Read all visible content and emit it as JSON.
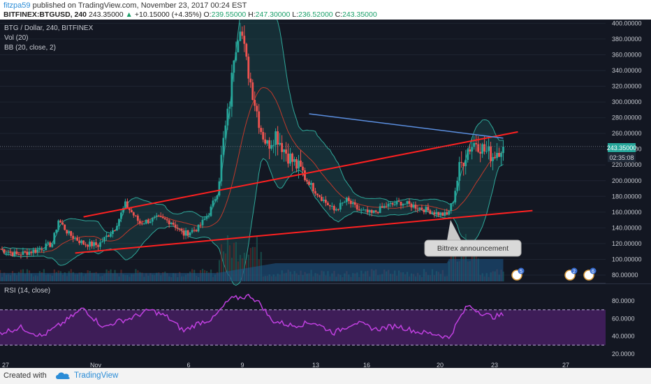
{
  "header": {
    "user": "fitzpa59",
    "published": " published on TradingView.com, November 23, 2017 00:24 EST",
    "symbol": "BITFINEX:BTGUSD, 240",
    "last": "243.35000",
    "change": "+10.15000 (+4.35%)",
    "o_label": "O:",
    "o_value": "239.55000",
    "h_label": "H:",
    "h_value": "247.30000",
    "l_label": "L:",
    "l_value": "236.52000",
    "c_label": "C:",
    "c_value": "243.35000"
  },
  "legend": {
    "title": "BTG / Dollar, 240, BITFINEX",
    "vol": "Vol (20)",
    "bb": "BB (20, close, 2)",
    "rsi": "RSI (14, close)"
  },
  "price_badge": "243.35000",
  "countdown_badge": "02:35:08",
  "annotation": "Bittrex announcement",
  "events": [
    {
      "count": "5",
      "x_date": "2017-11-22"
    },
    {
      "count": "2",
      "x_date": "2017-11-25"
    },
    {
      "count": "6",
      "x_date": "2017-11-26"
    }
  ],
  "footer": {
    "created_with": "Created with",
    "brand": "TradingView"
  },
  "colors": {
    "background": "#131722",
    "up_candle": "#26a69a",
    "down_candle": "#ef5350",
    "trend_red": "#ff2020",
    "trend_blue": "#5b8fe0",
    "rsi_line": "#c040e0",
    "rsi_fill": "#4a1f66"
  },
  "chart_data": {
    "type": "candlestick",
    "x_axis_labels": [
      "27",
      "Nov",
      "6",
      "9",
      "13",
      "16",
      "20",
      "23",
      "27"
    ],
    "y_axis_labels": [
      "80.00000",
      "100.00000",
      "120.00000",
      "140.00000",
      "160.00000",
      "180.00000",
      "200.00000",
      "220.00000",
      "240.00000",
      "260.00000",
      "280.00000",
      "300.00000",
      "320.00000",
      "340.00000",
      "360.00000",
      "380.00000",
      "400.00000"
    ],
    "ylim": [
      72,
      403
    ],
    "rsi_axis_labels": [
      "20.0000",
      "40.0000",
      "60.0000",
      "80.0000"
    ],
    "rsi_ylim": [
      12,
      96
    ],
    "rsi_bands": [
      30,
      70
    ],
    "close_path": [
      {
        "x": 0,
        "y": 113
      },
      {
        "x": 8,
        "y": 106
      },
      {
        "x": 18,
        "y": 112
      },
      {
        "x": 25,
        "y": 120
      },
      {
        "x": 28,
        "y": 150
      },
      {
        "x": 33,
        "y": 132
      },
      {
        "x": 40,
        "y": 120
      },
      {
        "x": 47,
        "y": 118
      },
      {
        "x": 55,
        "y": 140
      },
      {
        "x": 60,
        "y": 170
      },
      {
        "x": 67,
        "y": 146
      },
      {
        "x": 75,
        "y": 152
      },
      {
        "x": 82,
        "y": 148
      },
      {
        "x": 88,
        "y": 132
      },
      {
        "x": 95,
        "y": 140
      },
      {
        "x": 100,
        "y": 158
      },
      {
        "x": 104,
        "y": 185
      },
      {
        "x": 107,
        "y": 250
      },
      {
        "x": 110,
        "y": 300
      },
      {
        "x": 112,
        "y": 360
      },
      {
        "x": 115,
        "y": 400
      },
      {
        "x": 118,
        "y": 350
      },
      {
        "x": 122,
        "y": 300
      },
      {
        "x": 125,
        "y": 265
      },
      {
        "x": 128,
        "y": 245
      },
      {
        "x": 132,
        "y": 260
      },
      {
        "x": 136,
        "y": 240
      },
      {
        "x": 140,
        "y": 225
      },
      {
        "x": 145,
        "y": 210
      },
      {
        "x": 150,
        "y": 190
      },
      {
        "x": 155,
        "y": 175
      },
      {
        "x": 160,
        "y": 162
      },
      {
        "x": 166,
        "y": 175
      },
      {
        "x": 172,
        "y": 162
      },
      {
        "x": 178,
        "y": 158
      },
      {
        "x": 185,
        "y": 168
      },
      {
        "x": 192,
        "y": 172
      },
      {
        "x": 198,
        "y": 168
      },
      {
        "x": 204,
        "y": 163
      },
      {
        "x": 210,
        "y": 158
      },
      {
        "x": 214,
        "y": 156
      },
      {
        "x": 217,
        "y": 175
      },
      {
        "x": 220,
        "y": 215
      },
      {
        "x": 224,
        "y": 240
      },
      {
        "x": 228,
        "y": 250
      },
      {
        "x": 232,
        "y": 238
      },
      {
        "x": 236,
        "y": 232
      },
      {
        "x": 240,
        "y": 243.35
      }
    ],
    "trendlines": [
      {
        "color": "red",
        "from": [
          40,
          154
        ],
        "to": [
          248,
          262
        ]
      },
      {
        "color": "red",
        "from": [
          36,
          108
        ],
        "to": [
          255,
          162
        ]
      },
      {
        "color": "blue",
        "from": [
          148,
          285
        ],
        "to": [
          241,
          254
        ]
      }
    ],
    "rsi_path": [
      {
        "x": 0,
        "y": 44
      },
      {
        "x": 10,
        "y": 50
      },
      {
        "x": 20,
        "y": 40
      },
      {
        "x": 30,
        "y": 55
      },
      {
        "x": 40,
        "y": 72
      },
      {
        "x": 45,
        "y": 60
      },
      {
        "x": 50,
        "y": 50
      },
      {
        "x": 55,
        "y": 56
      },
      {
        "x": 62,
        "y": 60
      },
      {
        "x": 72,
        "y": 70
      },
      {
        "x": 80,
        "y": 62
      },
      {
        "x": 88,
        "y": 46
      },
      {
        "x": 95,
        "y": 55
      },
      {
        "x": 102,
        "y": 60
      },
      {
        "x": 110,
        "y": 82
      },
      {
        "x": 115,
        "y": 84
      },
      {
        "x": 120,
        "y": 86
      },
      {
        "x": 125,
        "y": 76
      },
      {
        "x": 130,
        "y": 58
      },
      {
        "x": 140,
        "y": 52
      },
      {
        "x": 150,
        "y": 56
      },
      {
        "x": 160,
        "y": 44
      },
      {
        "x": 170,
        "y": 56
      },
      {
        "x": 180,
        "y": 48
      },
      {
        "x": 190,
        "y": 52
      },
      {
        "x": 200,
        "y": 45
      },
      {
        "x": 210,
        "y": 42
      },
      {
        "x": 215,
        "y": 38
      },
      {
        "x": 220,
        "y": 60
      },
      {
        "x": 224,
        "y": 75
      },
      {
        "x": 228,
        "y": 70
      },
      {
        "x": 232,
        "y": 65
      },
      {
        "x": 236,
        "y": 62
      },
      {
        "x": 240,
        "y": 64
      }
    ]
  }
}
